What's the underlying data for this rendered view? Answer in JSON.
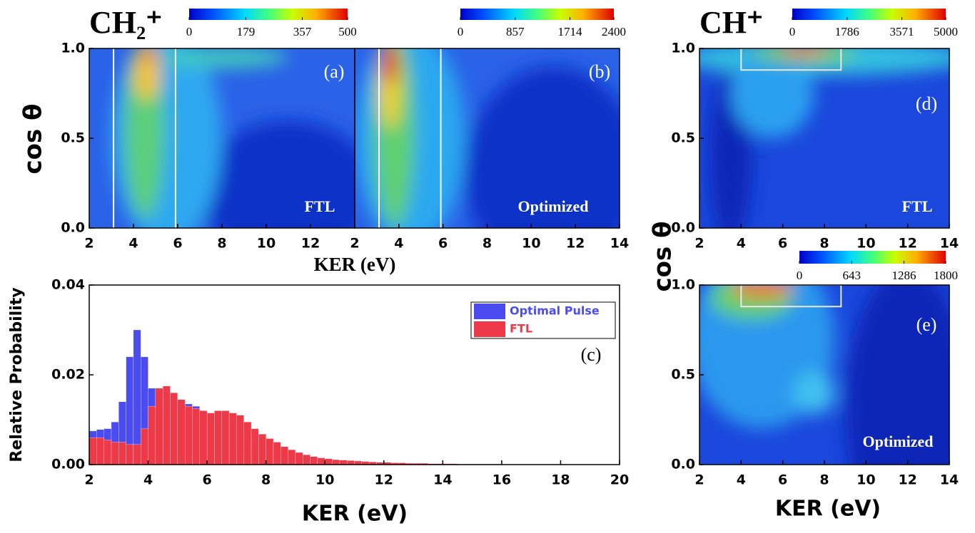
{
  "chart_data": [
    {
      "type": "heatmap",
      "title": "CH₂⁺",
      "panel_label": "(a)",
      "annotation": "FTL",
      "xlabel": "KER (eV)",
      "ylabel": "cos θ",
      "xlim": [
        2,
        14
      ],
      "xticks": [
        2,
        4,
        6,
        8,
        10,
        12
      ],
      "ylim": [
        0,
        1
      ],
      "yticks": [
        {
          "value": 0,
          "label": "0.0"
        },
        0.5,
        {
          "value": 1,
          "label": "1.0"
        }
      ],
      "colorbar": {
        "lim": [
          0,
          500
        ],
        "ticks": [
          0,
          179,
          357,
          500
        ]
      },
      "lines_x": [
        3.1,
        5.9
      ]
    },
    {
      "type": "heatmap",
      "panel_label": "(b)",
      "annotation": "Optimized",
      "xlim": [
        2,
        14
      ],
      "xticks": [
        2,
        4,
        6,
        8,
        10,
        12,
        14
      ],
      "ylim": [
        0,
        1
      ],
      "colorbar": {
        "lim": [
          0,
          2400
        ],
        "ticks": [
          0,
          857,
          1714,
          2400
        ]
      },
      "lines_x": [
        3.1,
        5.9
      ]
    },
    {
      "type": "histogram",
      "panel_label": "(c)",
      "xlabel": "KER (eV)",
      "ylabel": "Relative Probability",
      "xlim": [
        2,
        20
      ],
      "xticks": [
        2,
        4,
        6,
        8,
        10,
        12,
        14,
        16,
        18,
        20
      ],
      "ylim": [
        0,
        0.04
      ],
      "yticks": [
        {
          "value": 0,
          "label": "0.00"
        },
        {
          "value": 0.02,
          "label": "0.02"
        },
        {
          "value": 0.04,
          "label": "0.04"
        }
      ],
      "legend": "upper right",
      "bins": [
        2,
        2.25,
        2.5,
        2.75,
        3,
        3.25,
        3.5,
        3.75,
        4,
        4.25,
        4.5,
        4.75,
        5,
        5.25,
        5.5,
        5.75,
        6,
        6.25,
        6.5,
        6.75,
        7,
        7.25,
        7.5,
        7.75,
        8,
        8.25,
        8.5,
        8.75,
        9,
        9.25,
        9.5,
        9.75,
        10,
        10.25,
        10.5,
        10.75,
        11,
        11.25,
        11.5,
        11.75,
        12,
        12.25,
        12.5,
        12.75,
        13,
        13.25,
        13.5,
        13.75,
        14,
        14.25,
        14.5,
        14.75,
        15,
        15.25,
        15.5,
        15.75,
        16
      ],
      "series": [
        {
          "name": "Optimal Pulse",
          "color": "#4a4cf2",
          "values": [
            0.0075,
            0.0078,
            0.008,
            0.0095,
            0.014,
            0.024,
            0.03,
            0.024,
            0.017,
            0.016,
            0.0155,
            0.0148,
            0.014,
            0.0135,
            0.013,
            0.012,
            0.0115,
            0.0115,
            0.0105,
            0.009,
            0.0075,
            0.006,
            0.005,
            0.0042,
            0.0035,
            0.003,
            0.0025,
            0.0022,
            0.0018,
            0.0015,
            0.0013,
            0.0011,
            0.001,
            0.0008,
            0.0007,
            0.0006,
            0.0005,
            0.0005,
            0.0004,
            0.0004,
            0.0003,
            0.0003,
            0.0003,
            0.0002,
            0.0002,
            0.0002,
            0.0002,
            0.0002,
            0.0001,
            0.0001,
            0.0001,
            0.0001,
            0.0001,
            0.0001,
            0.0001,
            0.0001
          ]
        },
        {
          "name": "FTL",
          "color": "#ee3a48",
          "values": [
            0.006,
            0.006,
            0.0055,
            0.005,
            0.005,
            0.0045,
            0.0045,
            0.008,
            0.013,
            0.017,
            0.0175,
            0.016,
            0.0145,
            0.013,
            0.0125,
            0.012,
            0.0115,
            0.012,
            0.012,
            0.0115,
            0.011,
            0.0095,
            0.008,
            0.0068,
            0.0058,
            0.005,
            0.004,
            0.0033,
            0.0027,
            0.0022,
            0.0018,
            0.0015,
            0.0013,
            0.0011,
            0.001,
            0.0009,
            0.0008,
            0.0007,
            0.0006,
            0.0005,
            0.0005,
            0.0004,
            0.0004,
            0.0003,
            0.0003,
            0.0003,
            0.0002,
            0.0002,
            0.0002,
            0.0002,
            0.0001,
            0.0001,
            0.0001,
            0.0001,
            0.0001,
            0.0001
          ]
        }
      ]
    },
    {
      "type": "heatmap",
      "title": "CH⁺",
      "panel_label": "(d)",
      "annotation": "FTL",
      "ylabel": "cos θ",
      "xlim": [
        2,
        14
      ],
      "xticks": [
        2,
        4,
        6,
        8,
        10,
        12,
        14
      ],
      "ylim": [
        0,
        1
      ],
      "yticks": [
        {
          "value": 0,
          "label": "0.0"
        },
        0.5,
        {
          "value": 1,
          "label": "1.0"
        }
      ],
      "colorbar": {
        "lim": [
          0,
          5000
        ],
        "ticks": [
          0,
          1786,
          3571,
          5000
        ]
      },
      "box": {
        "x": [
          4,
          8.8
        ],
        "y": [
          0.88,
          1
        ]
      }
    },
    {
      "type": "heatmap",
      "panel_label": "(e)",
      "annotation": "Optimized",
      "xlabel": "KER (eV)",
      "xlim": [
        2,
        14
      ],
      "xticks": [
        2,
        4,
        6,
        8,
        10,
        12,
        14
      ],
      "ylim": [
        0,
        1
      ],
      "yticks": [
        {
          "value": 0,
          "label": "0.0"
        },
        0.5,
        {
          "value": 1,
          "label": "1.0"
        }
      ],
      "colorbar": {
        "lim": [
          0,
          1800
        ],
        "ticks": [
          0,
          643,
          1286,
          1800
        ]
      },
      "box": {
        "x": [
          4,
          8.8
        ],
        "y": [
          0.88,
          1
        ]
      }
    }
  ]
}
